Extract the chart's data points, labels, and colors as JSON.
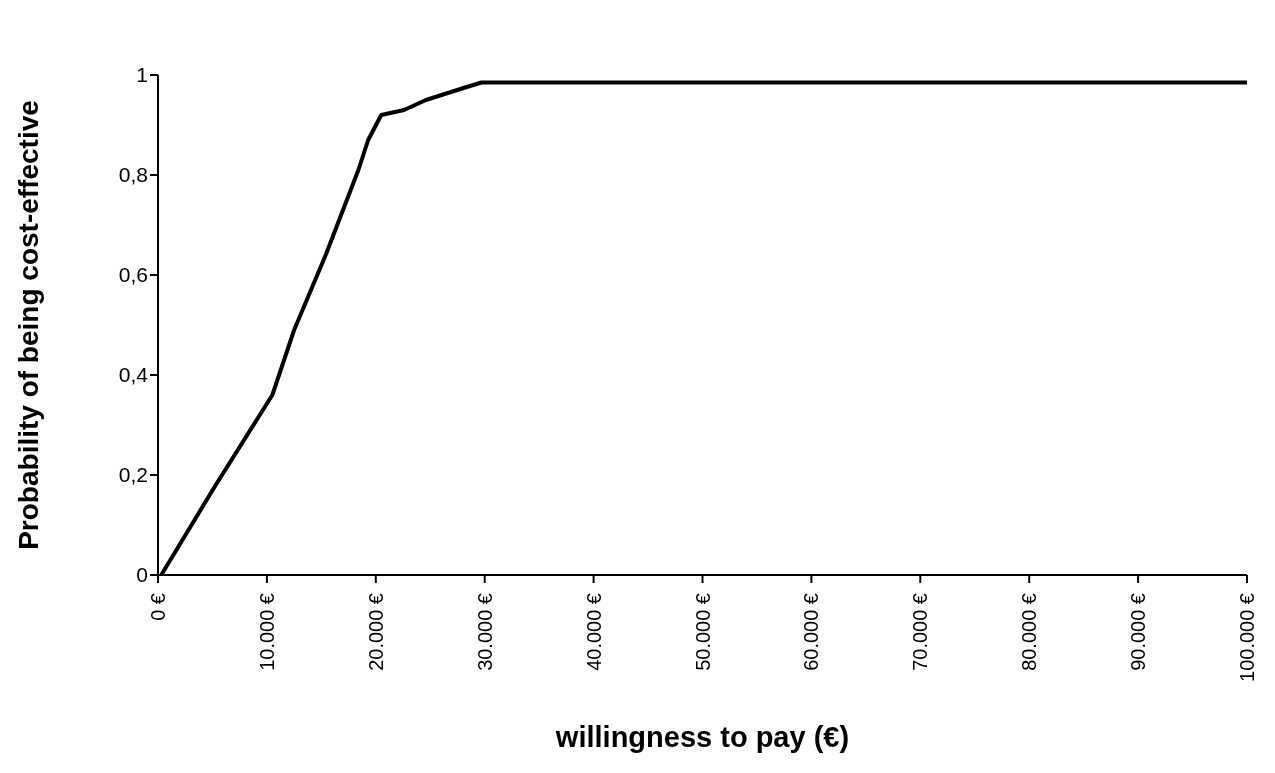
{
  "chart_data": {
    "type": "line",
    "xlabel": "willingness to pay (€)",
    "ylabel": "Probability of being cost-effective",
    "x": [
      300,
      5300,
      10500,
      12500,
      15400,
      18400,
      19300,
      20500,
      22600,
      24600,
      28200,
      29700,
      100000
    ],
    "series": [
      {
        "color": "#000000",
        "values": [
          0,
          0.18,
          0.36,
          0.49,
          0.64,
          0.81,
          0.87,
          0.92,
          0.93,
          0.95,
          0.975,
          0.985,
          0.985
        ]
      }
    ],
    "xlim": [
      0,
      100000
    ],
    "xticks": [
      {
        "value": 0,
        "label": "0 €"
      },
      {
        "value": 10000,
        "label": "10.000 €"
      },
      {
        "value": 20000,
        "label": "20.000 €"
      },
      {
        "value": 30000,
        "label": "30.000 €"
      },
      {
        "value": 40000,
        "label": "40.000 €"
      },
      {
        "value": 50000,
        "label": "50.000 €"
      },
      {
        "value": 60000,
        "label": "60.000 €"
      },
      {
        "value": 70000,
        "label": "70.000 €"
      },
      {
        "value": 80000,
        "label": "80.000 €"
      },
      {
        "value": 90000,
        "label": "90.000 €"
      },
      {
        "value": 100000,
        "label": "100.000 €"
      }
    ],
    "ylim": [
      0,
      1
    ],
    "yticks": [
      0,
      {
        "value": 0.2,
        "label": "0,2"
      },
      {
        "value": 0.4,
        "label": "0,4"
      },
      {
        "value": 0.6,
        "label": "0,6"
      },
      {
        "value": 0.8,
        "label": "0,8"
      },
      1
    ],
    "grid": false,
    "legend": false,
    "marker": "none",
    "line_style": "solid"
  }
}
